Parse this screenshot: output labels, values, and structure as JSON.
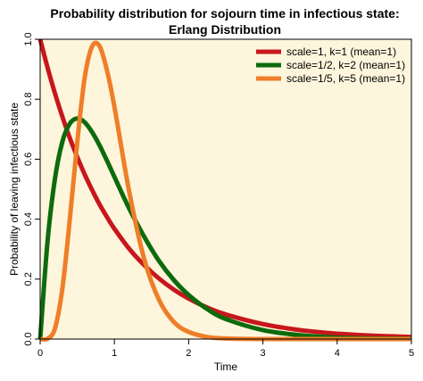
{
  "chart_data": {
    "type": "line",
    "title": "Probability distribution for sojourn time in infectious state:",
    "subtitle": "Erlang Distribution",
    "xlabel": "Time",
    "ylabel": "Probability of leaving infectious state",
    "xlim": [
      0,
      5
    ],
    "ylim": [
      0,
      1.0
    ],
    "xticks": [
      "0",
      "1",
      "2",
      "3",
      "4",
      "5"
    ],
    "yticks": [
      "0.0",
      "0.2",
      "0.4",
      "0.6",
      "0.8",
      "1.0"
    ],
    "background_color": "#fdf5dc",
    "grid": false,
    "legend_position": "top-right",
    "x": [
      0,
      0.1,
      0.2,
      0.3,
      0.4,
      0.5,
      0.6,
      0.7,
      0.8,
      0.9,
      1.0,
      1.2,
      1.4,
      1.6,
      1.8,
      2.0,
      2.25,
      2.5,
      3.0,
      3.5,
      4.0,
      4.5,
      5.0
    ],
    "series": [
      {
        "name": "scale=1, k=1 (mean=1)",
        "color": "#c8161d",
        "values": [
          1.0,
          0.905,
          0.819,
          0.741,
          0.67,
          0.607,
          0.549,
          0.497,
          0.449,
          0.407,
          0.368,
          0.301,
          0.247,
          0.202,
          0.165,
          0.135,
          0.105,
          0.082,
          0.05,
          0.03,
          0.018,
          0.011,
          0.007
        ]
      },
      {
        "name": "scale=1/2, k=2 (mean=1)",
        "color": "#0d6b0d",
        "values": [
          0.0,
          0.327,
          0.536,
          0.659,
          0.719,
          0.736,
          0.723,
          0.69,
          0.646,
          0.595,
          0.541,
          0.435,
          0.342,
          0.261,
          0.197,
          0.147,
          0.1,
          0.067,
          0.03,
          0.013,
          0.005,
          0.002,
          0.001
        ]
      },
      {
        "name": "scale=1/5, k=5 (mean=1)",
        "color": "#ee7e28",
        "values": [
          0.0,
          0.001,
          0.036,
          0.17,
          0.401,
          0.657,
          0.872,
          0.976,
          0.977,
          0.896,
          0.775,
          0.491,
          0.268,
          0.131,
          0.057,
          0.024,
          0.007,
          0.002,
          0.0,
          0.0,
          0.0,
          0.0,
          0.0
        ]
      }
    ]
  }
}
